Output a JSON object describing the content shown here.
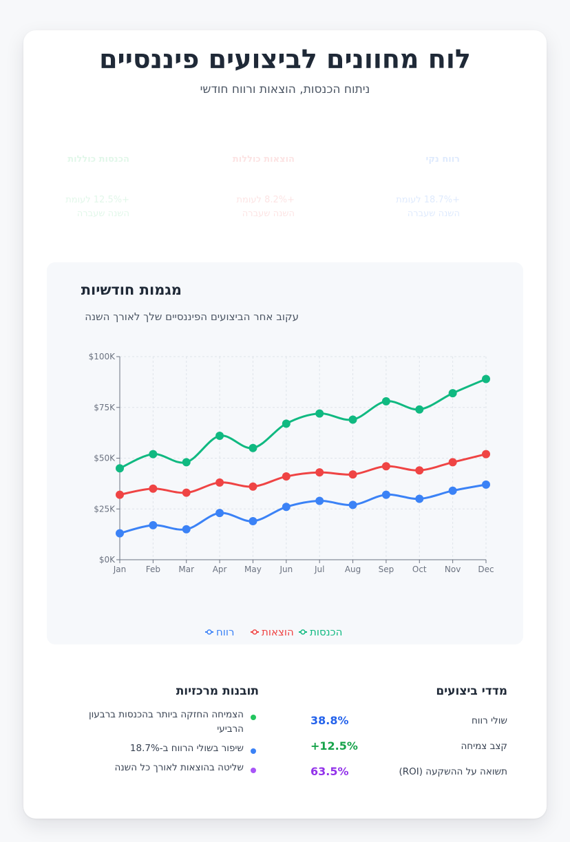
{
  "header": {
    "title": "לוח מחוונים לביצועים פיננסיים",
    "subtitle": "ניתוח הכנסות, הוצאות ורווח חודשי"
  },
  "kpis": [
    {
      "label": "הכנסות כוללות",
      "change": "+12.5% לעומת השנה שעברה",
      "color": "#22c55e"
    },
    {
      "label": "הוצאות כוללות",
      "change": "+8.2% לעומת השנה שעברה",
      "color": "#ef4444"
    },
    {
      "label": "רווח נקי",
      "change": "+18.7% לעומת השנה שעברה",
      "color": "#3b82f6"
    }
  ],
  "chart": {
    "title": "מגמות חודשיות",
    "subtitle": "עקוב אחר הביצועים הפיננסיים שלך לאורך השנה"
  },
  "chart_data": {
    "type": "line",
    "categories": [
      "Jan",
      "Feb",
      "Mar",
      "Apr",
      "May",
      "Jun",
      "Jul",
      "Aug",
      "Sep",
      "Oct",
      "Nov",
      "Dec"
    ],
    "series": [
      {
        "name": "הכנסות",
        "color": "#10b981",
        "values": [
          45000,
          52000,
          48000,
          61000,
          55000,
          67000,
          72000,
          69000,
          78000,
          74000,
          82000,
          89000
        ]
      },
      {
        "name": "הוצאות",
        "color": "#ef4444",
        "values": [
          32000,
          35000,
          33000,
          38000,
          36000,
          41000,
          43000,
          42000,
          46000,
          44000,
          48000,
          52000
        ]
      },
      {
        "name": "רווח",
        "color": "#3b82f6",
        "values": [
          13000,
          17000,
          15000,
          23000,
          19000,
          26000,
          29000,
          27000,
          32000,
          30000,
          34000,
          37000
        ]
      }
    ],
    "yticks": [
      "$0K",
      "$25K",
      "$50K",
      "$75K",
      "$100K"
    ],
    "ylim": [
      0,
      100000
    ],
    "grid": true,
    "legend": "bottom-center"
  },
  "insights": {
    "title": "תובנות מרכזיות",
    "items": [
      {
        "text": "הצמיחה החזקה ביותר בהכנסות ברבעון הרביעי",
        "color": "#22c55e"
      },
      {
        "text": "שיפור בשולי הרווח ב-18.7%",
        "color": "#3b82f6"
      },
      {
        "text": "שליטה בהוצאות לאורך כל השנה",
        "color": "#a855f7"
      }
    ]
  },
  "metrics": {
    "title": "מדדי ביצועים",
    "items": [
      {
        "label": "שולי רווח",
        "value": "38.8%",
        "color": "#2563eb"
      },
      {
        "label": "קצב צמיחה",
        "value": "+12.5%",
        "color": "#16a34a"
      },
      {
        "label": "תשואה על ההשקעה (ROI)",
        "value": "63.5%",
        "color": "#9333ea"
      }
    ]
  }
}
